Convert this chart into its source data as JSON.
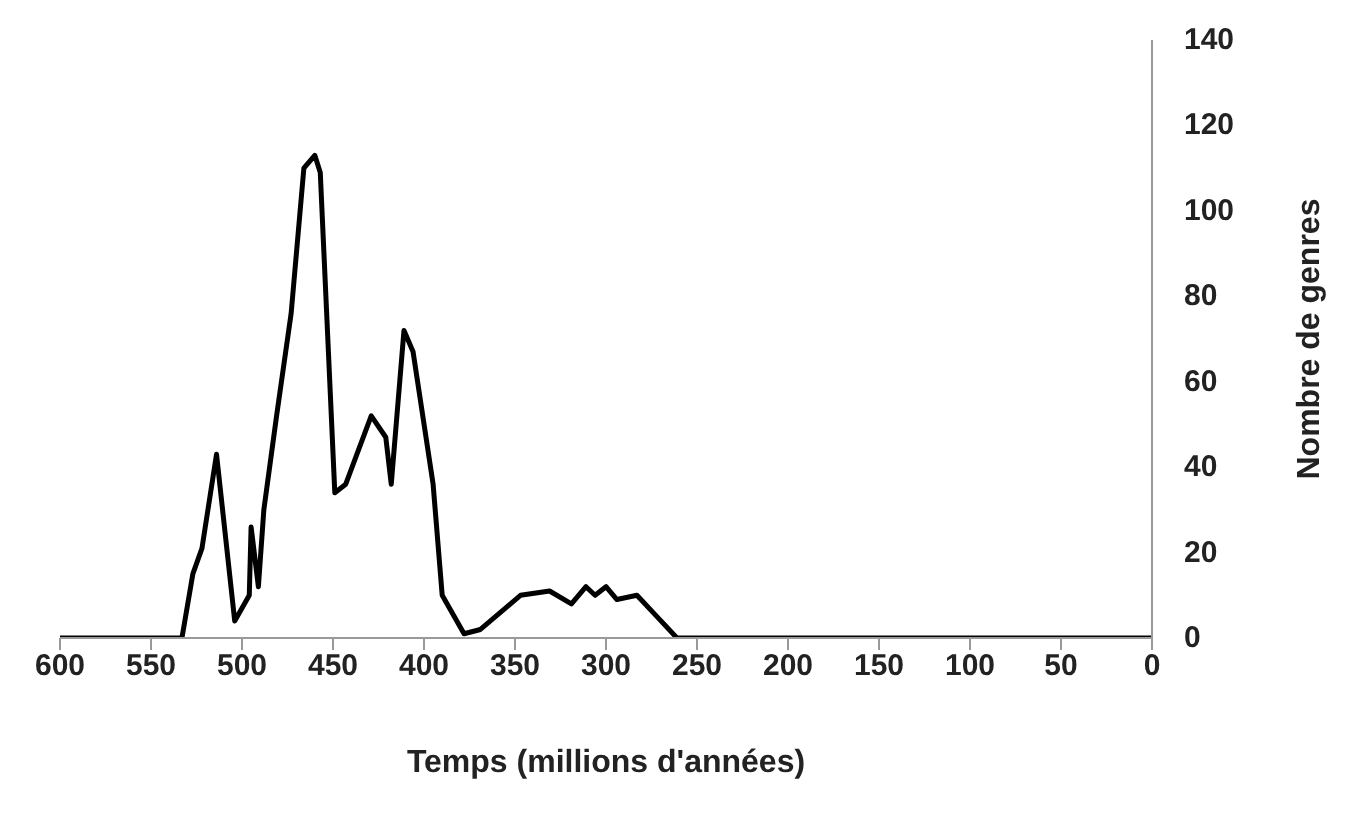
{
  "chart_data": {
    "type": "line",
    "xlabel": "Temps (millions d'années)",
    "ylabel": "Nombre de genres",
    "xlim": [
      600,
      0
    ],
    "xticks": [
      600,
      550,
      500,
      450,
      400,
      350,
      300,
      250,
      200,
      150,
      100,
      50,
      0
    ],
    "ylim": [
      0,
      140
    ],
    "yticks": [
      0,
      20,
      40,
      60,
      80,
      100,
      120,
      140
    ],
    "grid": false,
    "marker": "none",
    "line_style": "solid",
    "legend": false,
    "series": [
      {
        "color": "#000000",
        "x": [
          600,
          560,
          533,
          527,
          522,
          514,
          504,
          496,
          495,
          491,
          488,
          481,
          473,
          466,
          460,
          457,
          449,
          443,
          429,
          421,
          418,
          411,
          406,
          395,
          390,
          378,
          369,
          347,
          331,
          319,
          311,
          306,
          300,
          294,
          283,
          272,
          261,
          200,
          100,
          0
        ],
        "values": [
          0,
          0,
          0,
          15,
          21,
          43,
          4,
          10,
          26,
          12,
          30,
          52,
          76,
          110,
          113,
          109,
          34,
          36,
          52,
          47,
          36,
          72,
          67,
          36,
          10,
          1,
          2,
          10,
          11,
          8,
          12,
          10,
          12,
          9,
          10,
          5,
          0,
          0,
          0,
          0
        ]
      }
    ]
  }
}
